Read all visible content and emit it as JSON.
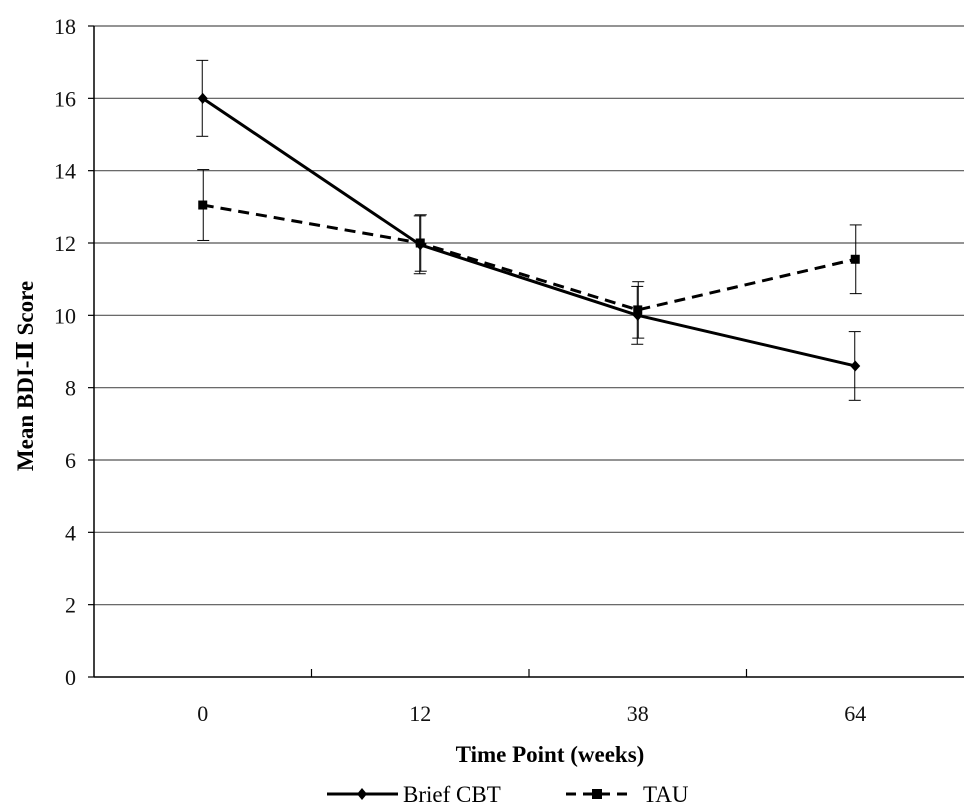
{
  "chart_data": {
    "type": "line",
    "xlabel": "Time Point (weeks)",
    "ylabel": "Mean BDI-Ⅱ Score",
    "categories": [
      "0",
      "12",
      "38",
      "64"
    ],
    "ylim": [
      0,
      18
    ],
    "yticks": [
      0,
      2,
      4,
      6,
      8,
      10,
      12,
      14,
      16,
      18
    ],
    "grid": "horizontal",
    "legend_position": "bottom",
    "series": [
      {
        "name": "Brief CBT",
        "values": [
          16.0,
          11.95,
          10.0,
          8.6
        ],
        "error": [
          1.05,
          0.8,
          0.8,
          0.95
        ],
        "line_style": "solid",
        "marker": "diamond",
        "color": "#000000"
      },
      {
        "name": "TAU",
        "values": [
          13.05,
          12.0,
          10.15,
          11.55
        ],
        "error": [
          0.98,
          0.78,
          0.78,
          0.95
        ],
        "line_style": "dashed",
        "marker": "square",
        "color": "#000000"
      }
    ]
  }
}
